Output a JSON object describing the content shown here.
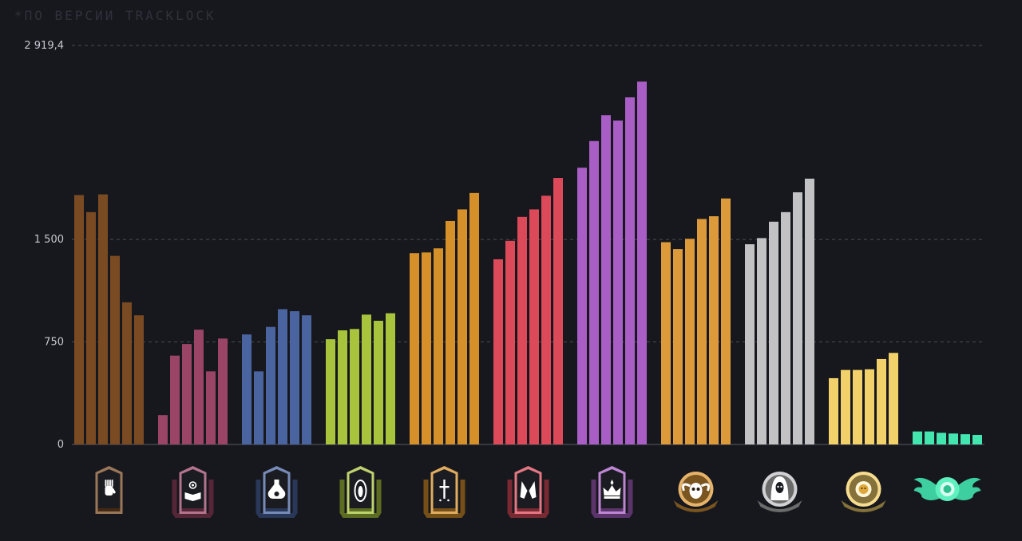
{
  "header": {
    "source_note": "*по версии Tracklock"
  },
  "chart_data": {
    "type": "bar",
    "title": "",
    "xlabel": "",
    "ylabel": "",
    "ylim": [
      0,
      2919.4
    ],
    "yticks": [
      0,
      750,
      1500,
      2919.4
    ],
    "ytick_labels": [
      "0",
      "750",
      "1 500",
      "2 919,4"
    ],
    "grid": true,
    "groups": [
      {
        "icon": "hand-rank-icon",
        "color": "#7a4a22",
        "values": [
          1825,
          1700,
          1830,
          1380,
          1040,
          945
        ]
      },
      {
        "icon": "open-book-rank-icon",
        "color": "#9a4566",
        "values": [
          215,
          650,
          735,
          840,
          535,
          775
        ]
      },
      {
        "icon": "potion-flask-rank-icon",
        "color": "#4a64a0",
        "values": [
          805,
          535,
          860,
          990,
          975,
          945
        ]
      },
      {
        "icon": "hooded-figure-rank-icon",
        "color": "#a8c43c",
        "values": [
          770,
          835,
          845,
          950,
          905,
          960
        ]
      },
      {
        "icon": "sword-rank-icon",
        "color": "#d5902a",
        "values": [
          1400,
          1405,
          1435,
          1635,
          1720,
          1840
        ]
      },
      {
        "icon": "twin-blades-rank-icon",
        "color": "#dc4a5a",
        "values": [
          1355,
          1490,
          1665,
          1720,
          1820,
          1950
        ]
      },
      {
        "icon": "crown-rank-icon",
        "color": "#a85ec4",
        "values": [
          2025,
          2220,
          2410,
          2370,
          2540,
          2655
        ]
      },
      {
        "icon": "ram-skull-rank-icon",
        "color": "#dd9a3a",
        "values": [
          1480,
          1430,
          1505,
          1650,
          1670,
          1800
        ]
      },
      {
        "icon": "reaper-rank-icon",
        "color": "#c2c2c4",
        "values": [
          1465,
          1510,
          1630,
          1700,
          1845,
          1945
        ]
      },
      {
        "icon": "golden-lion-rank-icon",
        "color": "#f2d06a",
        "values": [
          485,
          545,
          545,
          550,
          625,
          670
        ]
      },
      {
        "icon": "jade-wings-rank-icon",
        "color": "#44e6b0",
        "values": [
          95,
          95,
          85,
          80,
          75,
          70
        ]
      }
    ]
  }
}
